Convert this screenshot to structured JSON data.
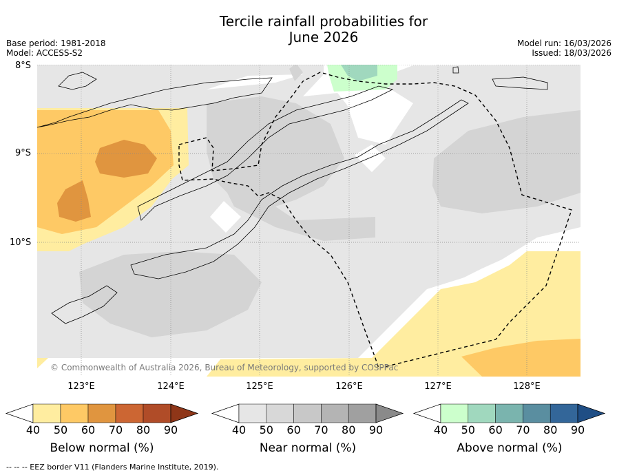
{
  "title_line1": "Tercile rainfall probabilities for",
  "title_line2": "June 2026",
  "base_period": "Base period: 1981-2018",
  "model": "Model: ACCESS-S2",
  "model_run": "Model run: 16/03/2026",
  "issued": "Issued: 18/03/2026",
  "latitudes": [
    "8°S",
    "9°S",
    "10°S"
  ],
  "longitudes": [
    "123°E",
    "124°E",
    "125°E",
    "126°E",
    "127°E",
    "128°E"
  ],
  "copyright": "© Commonwealth of Australia 2026, Bureau of Meteorology, supported by COSPPac",
  "colorbars": [
    {
      "label": "Below normal (%)",
      "ticks": [
        "40",
        "50",
        "60",
        "70",
        "80",
        "90"
      ],
      "colors": [
        "#ffeda0",
        "#fec965",
        "#e0953f",
        "#cc6633",
        "#b04c28",
        "#8f3618"
      ]
    },
    {
      "label": "Near normal (%)",
      "ticks": [
        "40",
        "50",
        "60",
        "70",
        "80",
        "90"
      ],
      "colors": [
        "#e6e6e6",
        "#d8d8d8",
        "#c8c8c8",
        "#b4b4b4",
        "#a0a0a0",
        "#8a8a8a"
      ]
    },
    {
      "label": "Above normal (%)",
      "ticks": [
        "40",
        "50",
        "60",
        "70",
        "80",
        "90"
      ],
      "colors": [
        "#ccffcc",
        "#a0d8be",
        "#7ab4ae",
        "#5a8ea0",
        "#336699",
        "#1f4e85"
      ]
    }
  ],
  "eez_note": "-- -- -- EEZ border V11 (Flanders Marine Institute, 2019)."
}
